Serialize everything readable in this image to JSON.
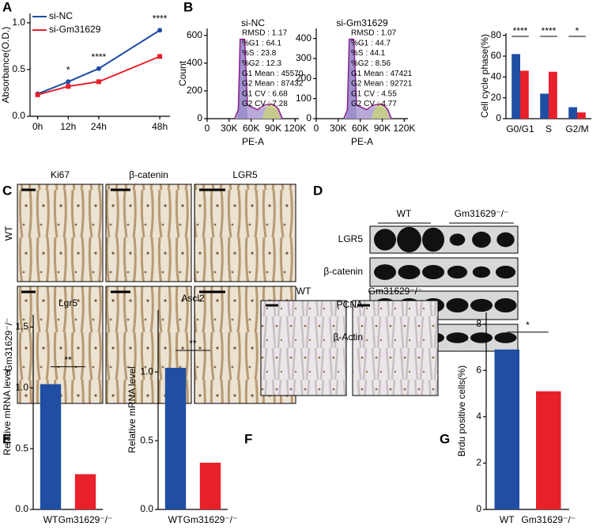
{
  "chart_data": [
    {
      "type": "line",
      "ylabel": "Absorbance(O.D.)",
      "x": [
        0,
        12,
        24,
        48
      ],
      "xlim": [
        -3,
        52
      ],
      "xticks": [
        {
          "value": 0,
          "label": "0h"
        },
        {
          "value": 12,
          "label": "12h"
        },
        {
          "value": 24,
          "label": "24h"
        },
        {
          "value": 48,
          "label": "48h"
        }
      ],
      "ylim": [
        0,
        1.1
      ],
      "yticks": [
        {
          "value": 0,
          "label": "0.0"
        },
        {
          "value": 0.5,
          "label": "0.5"
        },
        {
          "value": 1,
          "label": "1.0"
        }
      ],
      "series": [
        {
          "name": "si-NC",
          "color": "#1f4ea3",
          "values": [
            0.24,
            0.37,
            0.51,
            0.92
          ]
        },
        {
          "name": "si-Gm31629",
          "color": "#e8202a",
          "values": [
            0.23,
            0.32,
            0.37,
            0.64
          ]
        }
      ],
      "annotations": [
        {
          "x": 12,
          "text": "*"
        },
        {
          "x": 24,
          "text": "****"
        },
        {
          "x": 48,
          "text": "****"
        }
      ]
    },
    {
      "type": "flow",
      "title": "si-NC",
      "xlabel": "PE-A",
      "ylabel": "Count",
      "xlim": [
        0,
        125000
      ],
      "xticks": [
        0,
        {
          "value": 30000,
          "label": "30K"
        },
        {
          "value": 60000,
          "label": "60K"
        },
        {
          "value": 90000,
          "label": "90K"
        },
        {
          "value": 120000,
          "label": "120K"
        }
      ],
      "ylim": [
        0,
        650
      ],
      "yticks": [
        0,
        200,
        400,
        600
      ],
      "stats": [
        "RMSD : 1.17",
        "%G1 : 64.1",
        "%S : 23.8",
        "%G2 : 12.3",
        "G1 Mean : 45570",
        "G2 Mean : 87432",
        "G1 CV : 6.68",
        "G2 CV : 7.28"
      ]
    },
    {
      "type": "flow",
      "title": "si-Gm31629",
      "xlabel": "PE-A",
      "ylabel": "Count",
      "xlim": [
        0,
        125000
      ],
      "xticks": [
        0,
        {
          "value": 30000,
          "label": "30K"
        },
        {
          "value": 60000,
          "label": "60K"
        },
        {
          "value": 90000,
          "label": "90K"
        },
        {
          "value": 120000,
          "label": "120K"
        }
      ],
      "ylim": [
        0,
        450
      ],
      "yticks": [
        0,
        100,
        200,
        300,
        400
      ],
      "stats": [
        "RMSD : 1.07",
        "%G1 : 44.7",
        "%S : 44.1",
        "%G2 : 8.56",
        "G1 Mean : 47421",
        "G2 Mean : 92721",
        "G1 CV : 4.55",
        "G2 CV : 4.77"
      ]
    },
    {
      "type": "bar",
      "ylabel": "Cell cycle phase(%)",
      "categories": [
        "G0/G1",
        "S",
        "G2/M"
      ],
      "ylim": [
        0,
        82
      ],
      "yticks": [
        0,
        20,
        40,
        60,
        80
      ],
      "series": [
        {
          "color": "#1f4ea3",
          "values": [
            62,
            24,
            11
          ]
        },
        {
          "color": "#e8202a",
          "values": [
            46,
            45,
            6
          ]
        }
      ],
      "annotations": [
        "****",
        "****",
        "*"
      ]
    },
    {
      "type": "bar",
      "title": "Lgr5",
      "ylabel": "Relative mRNA level",
      "categories": [
        "WT",
        "Gm31629⁻/⁻"
      ],
      "ylim": [
        0,
        1.6
      ],
      "yticks": [
        {
          "value": 0,
          "label": "0.0"
        },
        {
          "value": 0.5,
          "label": "0.5"
        },
        {
          "value": 1,
          "label": "1.0"
        },
        {
          "value": 1.5,
          "label": "1.5"
        }
      ],
      "values": [
        1.03,
        0.29
      ],
      "colors": [
        "#1f4ea3",
        "#e8202a"
      ],
      "annotation": "**"
    },
    {
      "type": "bar",
      "title": "Ascl2",
      "ylabel": "Relative mRNA level",
      "categories": [
        "WT",
        "Gm31629⁻/⁻"
      ],
      "ylim": [
        0,
        1.45
      ],
      "yticks": [
        {
          "value": 0,
          "label": "0.0"
        },
        {
          "value": 0.5,
          "label": "0.5"
        },
        {
          "value": 1,
          "label": "1.0"
        }
      ],
      "values": [
        1.03,
        0.34
      ],
      "colors": [
        "#1f4ea3",
        "#e8202a"
      ],
      "annotation": "**"
    },
    {
      "type": "bar",
      "ylabel": "Brdu positive cells(%)",
      "categories": [
        "WT",
        "Gm31629⁻/⁻"
      ],
      "ylim": [
        0,
        8.5
      ],
      "yticks": [
        0,
        2,
        4,
        6,
        8
      ],
      "values": [
        6.9,
        5.1
      ],
      "colors": [
        "#1f4ea3",
        "#e8202a"
      ],
      "annotation": "*"
    }
  ],
  "figure": {
    "panel_labels": [
      "A",
      "B",
      "C",
      "D",
      "E",
      "F",
      "G"
    ],
    "panel_c": {
      "columns": [
        "Ki67",
        "β-catenin",
        "LGR5"
      ],
      "rows": [
        "WT",
        "Gm31629⁻/⁻"
      ]
    },
    "panel_d": {
      "groups": [
        "WT",
        "Gm31629⁻/⁻"
      ],
      "rows": [
        "LGR5",
        "β-catenin",
        "PCNA",
        "β-Actin"
      ]
    },
    "panel_f": {
      "labels": [
        "WT",
        "Gm31629⁻/⁻"
      ]
    }
  }
}
